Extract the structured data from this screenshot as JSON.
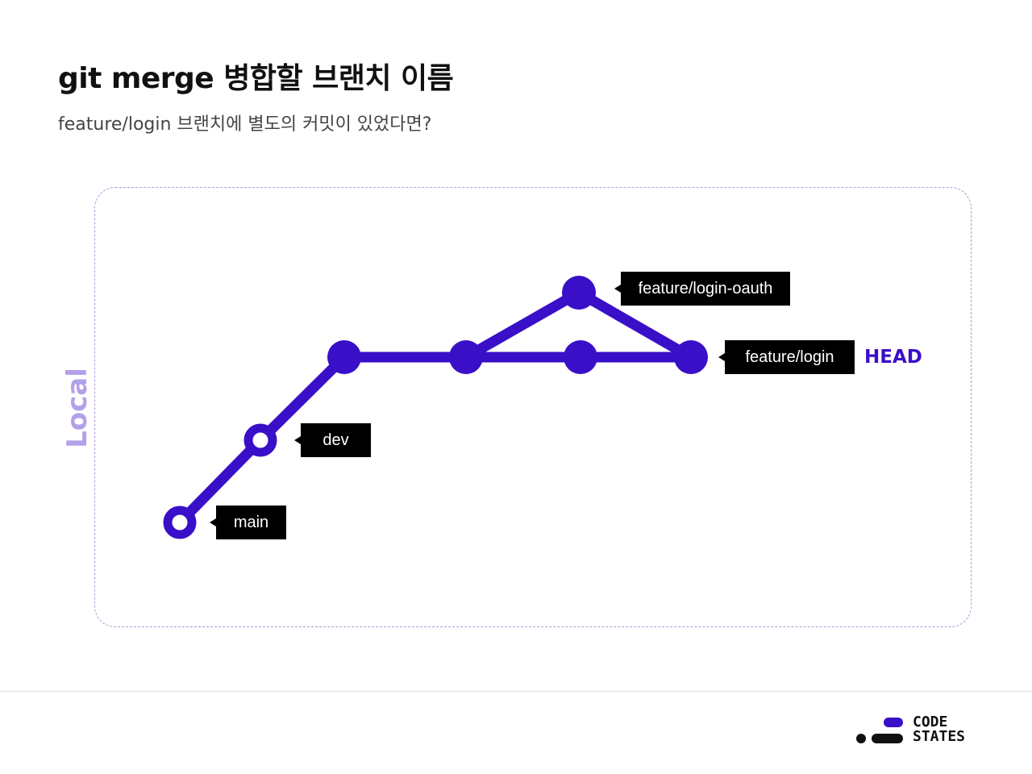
{
  "title": "git merge 병합할 브랜치 이름",
  "subtitle": "feature/login 브랜치에 별도의 커밋이 있었다면?",
  "side_label": "Local",
  "head_label": "HEAD",
  "colors": {
    "accent": "#3a0fc8",
    "tag_bg": "#000000",
    "side_label": "#b3a0e8",
    "frame_border": "#a89cd6"
  },
  "branches": {
    "main": "main",
    "dev": "dev",
    "feature_login": "feature/login",
    "feature_login_oauth": "feature/login-oauth"
  },
  "logo": {
    "line1": "CODE",
    "line2": "STATES"
  }
}
